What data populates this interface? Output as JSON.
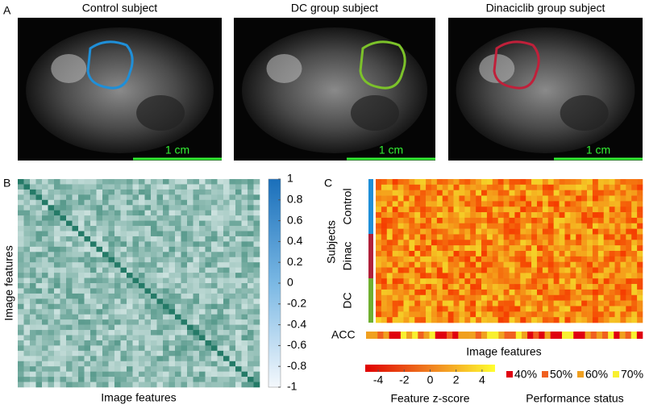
{
  "panels": {
    "A": {
      "label": "A",
      "images": [
        {
          "title": "Control subject",
          "scale": "1 cm",
          "outline": "#1f8fd8"
        },
        {
          "title": "DC group subject",
          "scale": "1 cm",
          "outline": "#7cc22a"
        },
        {
          "title": "Dinaciclib group subject",
          "scale": "1 cm",
          "outline": "#c0203a"
        }
      ]
    },
    "B": {
      "label": "B",
      "xlabel": "Image features",
      "ylabel": "Image features",
      "colorbar": {
        "lim": [
          -1,
          1
        ],
        "ticks": [
          1,
          0.8,
          0.6,
          0.4,
          0.2,
          0,
          -0.2,
          -0.4,
          -0.6,
          -0.8,
          -1
        ]
      }
    },
    "C": {
      "label": "C",
      "ylabel": "Subjects",
      "groups": [
        {
          "name": "Control",
          "color": "#1f8fd8"
        },
        {
          "name": "Dinac",
          "color": "#b0203a"
        },
        {
          "name": "DC",
          "color": "#70b030"
        }
      ],
      "acc_label": "ACC",
      "xlabel": "Image features",
      "zscore": {
        "title": "Feature z-score",
        "lim": [
          -5,
          5
        ],
        "ticks": [
          -4,
          -2,
          0,
          2,
          4
        ]
      },
      "performance": {
        "title": "Performance status",
        "items": [
          {
            "label": "40%",
            "color": "#e00010"
          },
          {
            "label": "50%",
            "color": "#f06020"
          },
          {
            "label": "60%",
            "color": "#f0a020"
          },
          {
            "label": "70%",
            "color": "#f8f030"
          }
        ]
      }
    }
  }
}
